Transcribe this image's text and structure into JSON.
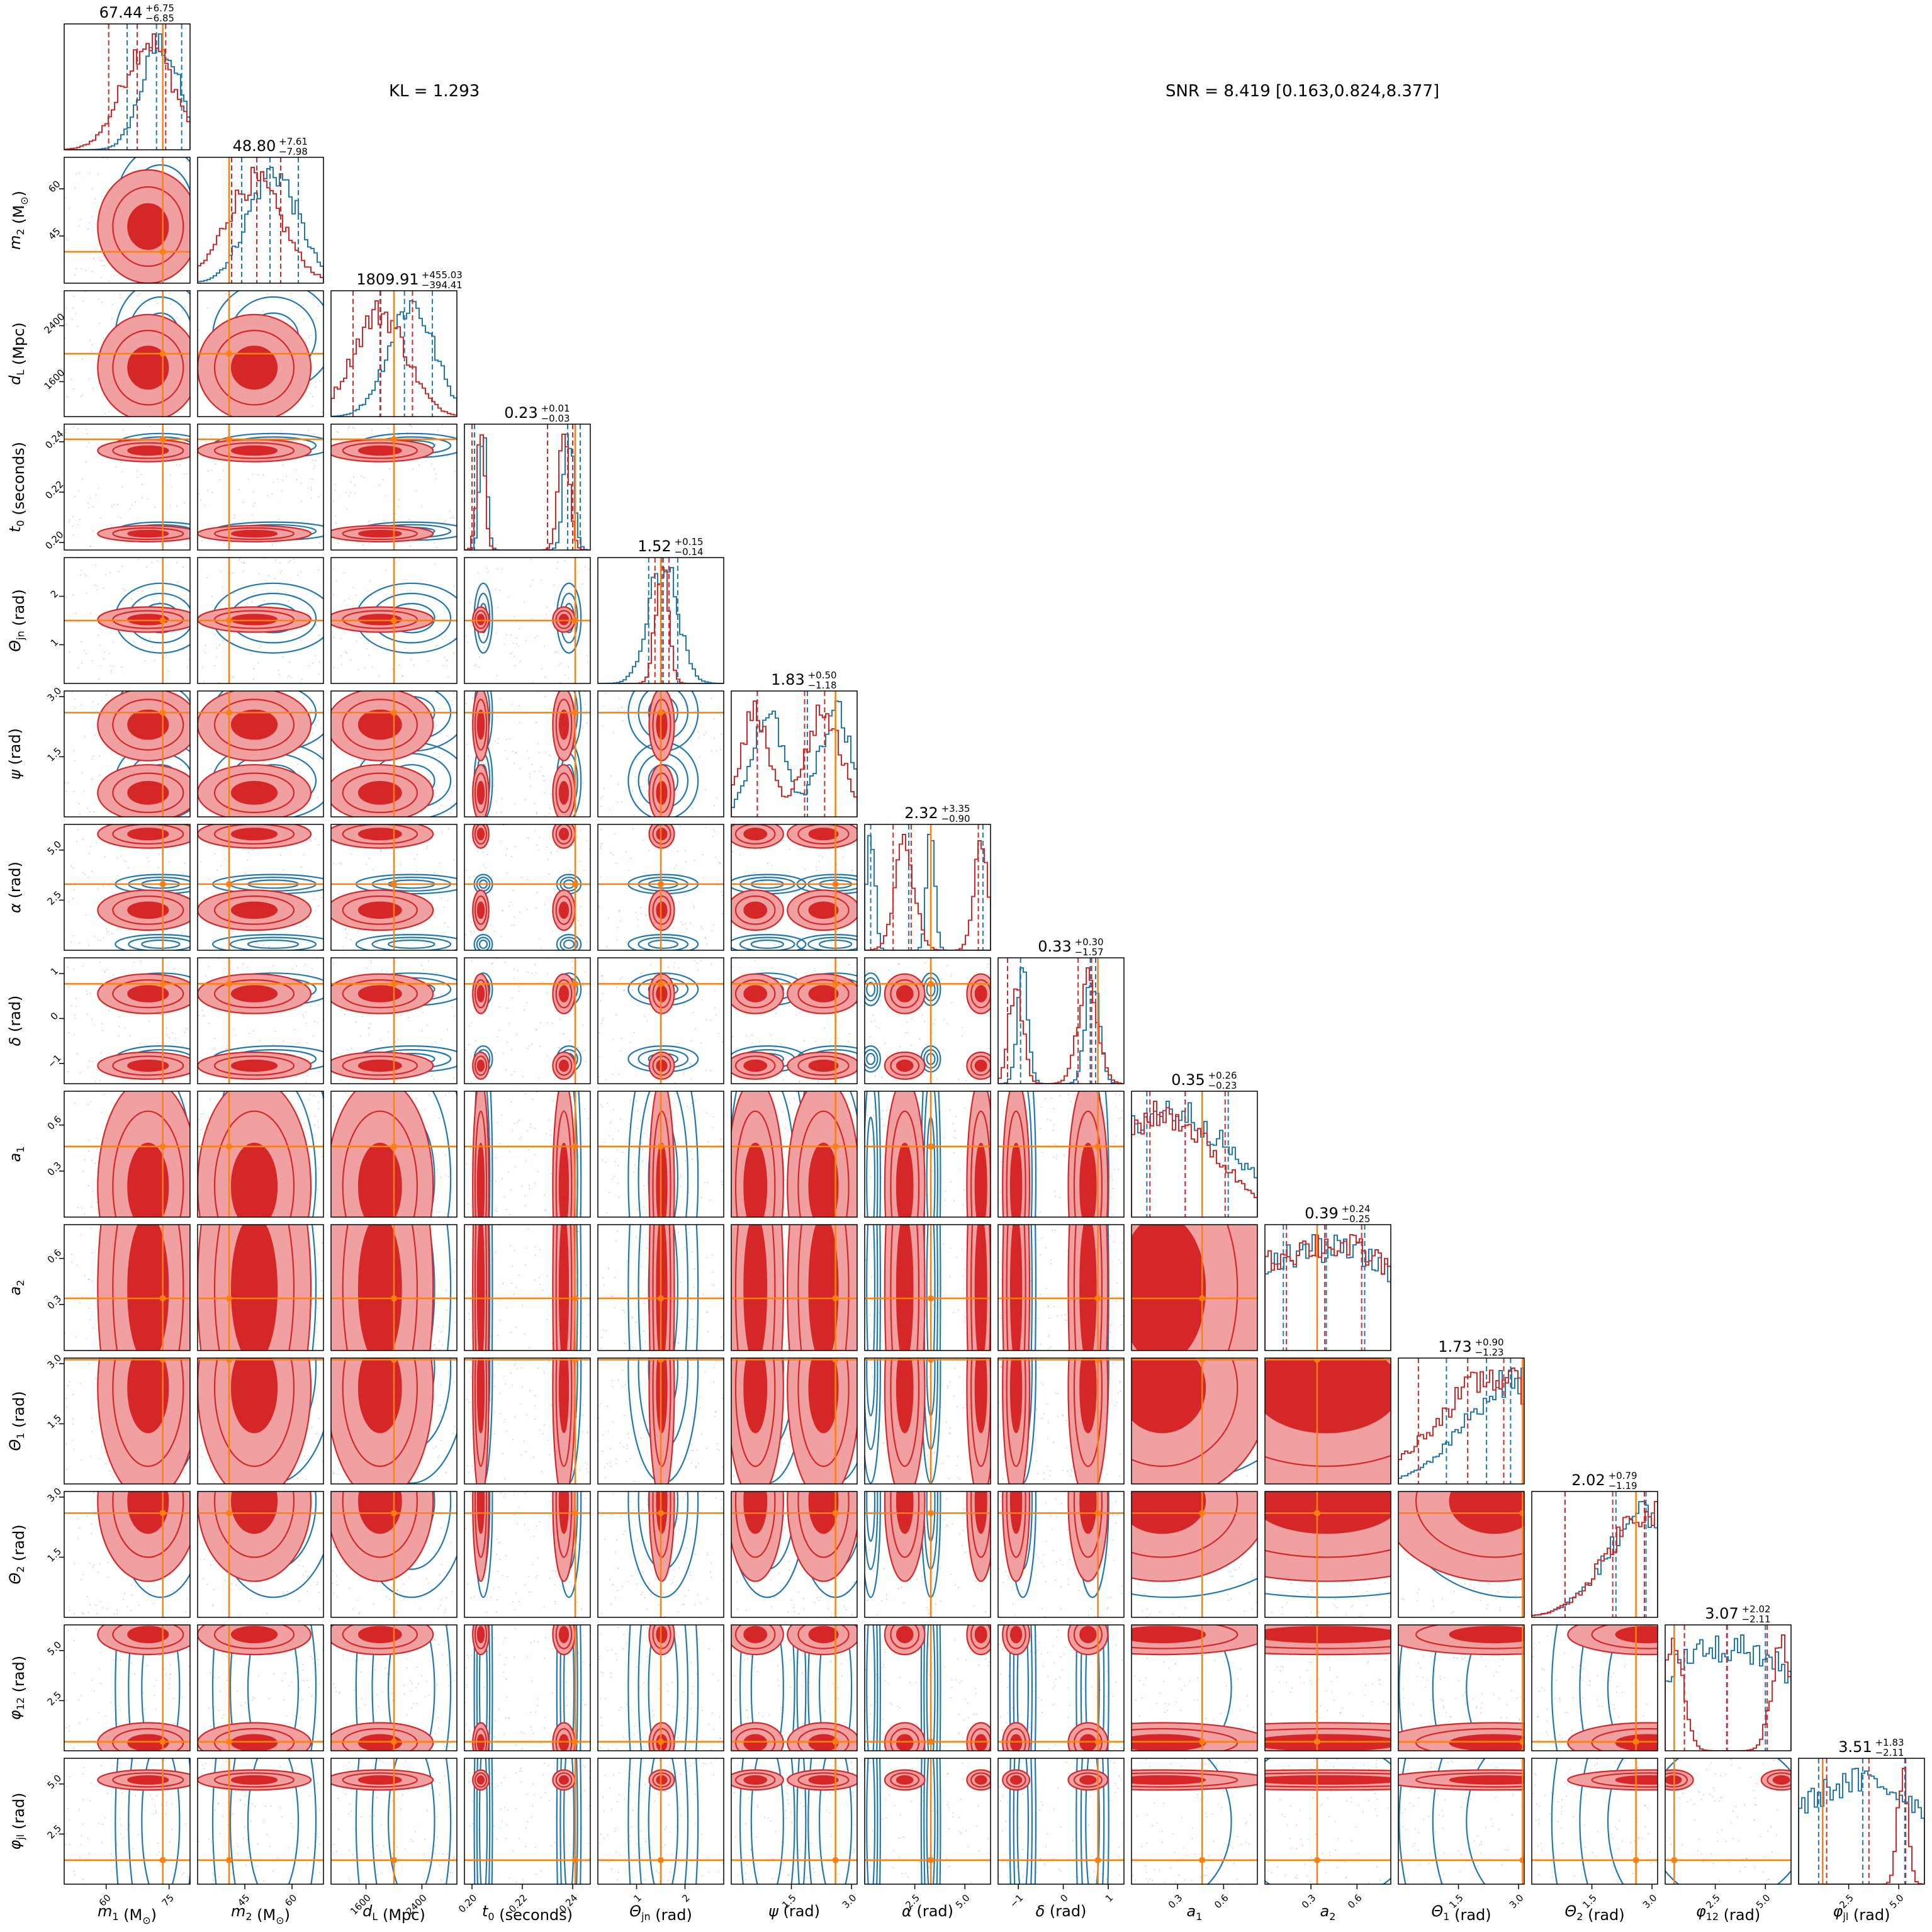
{
  "header": {
    "kl": "KL = 1.293",
    "snr": "SNR = 8.419 [0.163,0.824,8.377]"
  },
  "colors": {
    "posterior_a": "#d62728",
    "posterior_a_fill_light": "#f0a0a0",
    "posterior_b": "#1f77b4",
    "truth": "#ff7f0e"
  },
  "chart_data": {
    "type": "corner",
    "title": "",
    "series": [
      {
        "name": "",
        "color": "#d62728",
        "style": "filled-contours"
      },
      {
        "name": "",
        "color": "#1f77b4",
        "style": "line-contours"
      }
    ],
    "parameters": [
      {
        "key": "m1",
        "label_main": "m",
        "label_sub": "1",
        "label_unit": " (M",
        "label_unit_sub": "⊙",
        "label_unit_end": ")",
        "range": [
          50,
          80
        ],
        "ticks": [
          60,
          75
        ],
        "tick_labels": [
          "60",
          "75"
        ],
        "median": "67.44",
        "plus": "+6.75",
        "minus": "−6.85",
        "truth": 73.5,
        "red": {
          "peaks": [
            [
              70,
              6
            ]
          ],
          "q": [
            60.6,
            67.4,
            74.2
          ]
        },
        "blue": {
          "peaks": [
            [
              73,
              4.5
            ]
          ],
          "q": [
            65.0,
            72.0,
            78.0
          ]
        }
      },
      {
        "key": "m2",
        "label_main": "m",
        "label_sub": "2",
        "label_unit": " (M",
        "label_unit_sub": "⊙",
        "label_unit_end": ")",
        "range": [
          30,
          70
        ],
        "ticks": [
          45,
          60
        ],
        "tick_labels": [
          "45",
          "60"
        ],
        "median": "48.80",
        "plus": "+7.61",
        "minus": "−7.98",
        "truth": 40.0,
        "red": {
          "peaks": [
            [
              48,
              9
            ]
          ],
          "q": [
            40.8,
            48.8,
            56.4
          ]
        },
        "blue": {
          "peaks": [
            [
              54,
              8
            ]
          ],
          "q": [
            44.0,
            53.0,
            62.0
          ]
        }
      },
      {
        "key": "dL",
        "label_main": "d",
        "label_sub": "L",
        "label_unit": " (Mpc)",
        "range": [
          1100,
          2900
        ],
        "ticks": [
          1600,
          2400
        ],
        "tick_labels": [
          "1600",
          "2400"
        ],
        "median": "1809.91",
        "plus": "+455.03",
        "minus": "−394.41",
        "truth": 2000,
        "red": {
          "peaks": [
            [
              1800,
              380
            ]
          ],
          "q": [
            1415,
            1810,
            2265
          ]
        },
        "blue": {
          "peaks": [
            [
              2250,
              330
            ]
          ],
          "q": [
            1800,
            2150,
            2550
          ]
        }
      },
      {
        "key": "t0",
        "label_main": "t",
        "label_sub": "0",
        "label_unit": " (seconds)",
        "range": [
          0.197,
          0.247
        ],
        "ticks": [
          0.2,
          0.22,
          0.24
        ],
        "tick_labels": [
          "0.20",
          "0.22",
          "0.24"
        ],
        "median": "0.23",
        "plus": "+0.01",
        "minus": "−0.03",
        "truth": 0.241,
        "red": {
          "peaks": [
            [
              0.2035,
              0.0016
            ],
            [
              0.2365,
              0.0022
            ]
          ],
          "q": [
            0.2,
            0.23,
            0.24
          ]
        },
        "blue": {
          "peaks": [
            [
              0.2045,
              0.0015
            ],
            [
              0.2385,
              0.002
            ]
          ],
          "q": [
            0.201,
            0.238,
            0.243
          ]
        }
      },
      {
        "key": "thetajn",
        "label_main": "Θ",
        "label_sub": "jn",
        "label_unit": " (rad)",
        "range": [
          0.2,
          2.8
        ],
        "ticks": [
          1,
          2
        ],
        "tick_labels": [
          "1",
          "2"
        ],
        "median": "1.52",
        "plus": "+0.15",
        "minus": "−0.14",
        "truth": 1.5,
        "red": {
          "peaks": [
            [
              1.52,
              0.13
            ]
          ],
          "q": [
            1.38,
            1.52,
            1.67
          ]
        },
        "blue": {
          "peaks": [
            [
              1.55,
              0.3
            ]
          ],
          "q": [
            1.25,
            1.55,
            1.85
          ]
        }
      },
      {
        "key": "psi",
        "label_main": "ψ",
        "label_sub": "",
        "label_unit": " (rad)",
        "range": [
          0,
          3.14
        ],
        "ticks": [
          1.5,
          3.0
        ],
        "tick_labels": [
          "1.5",
          "3.0"
        ],
        "median": "1.83",
        "plus": "+0.50",
        "minus": "−1.18",
        "truth": 2.6,
        "red": {
          "peaks": [
            [
              0.6,
              0.35
            ],
            [
              2.3,
              0.45
            ]
          ],
          "q": [
            0.65,
            1.83,
            2.33
          ]
        },
        "blue": {
          "peaks": [
            [
              0.9,
              0.4
            ],
            [
              2.6,
              0.4
            ]
          ],
          "q": [
            0.65,
            1.9,
            2.6
          ]
        }
      },
      {
        "key": "alpha",
        "label_main": "α",
        "label_sub": "",
        "label_unit": " (rad)",
        "range": [
          0,
          6.28
        ],
        "ticks": [
          2.5,
          5.0
        ],
        "tick_labels": [
          "2.5",
          "5.0"
        ],
        "median": "2.32",
        "plus": "+3.35",
        "minus": "−0.90",
        "truth": 3.3,
        "red": {
          "peaks": [
            [
              2.0,
              0.5
            ],
            [
              5.8,
              0.35
            ]
          ],
          "q": [
            1.42,
            2.32,
            5.67
          ]
        },
        "blue": {
          "peaks": [
            [
              0.3,
              0.2
            ],
            [
              3.3,
              0.2
            ]
          ],
          "q": [
            0.3,
            2.2,
            5.9
          ]
        }
      },
      {
        "key": "delta",
        "label_main": "δ",
        "label_sub": "",
        "label_unit": " (rad)",
        "range": [
          -1.45,
          1.35
        ],
        "ticks": [
          -1,
          0,
          1
        ],
        "tick_labels": [
          "−1",
          "0",
          "1"
        ],
        "median": "0.33",
        "plus": "+0.30",
        "minus": "−1.57",
        "truth": 0.77,
        "red": {
          "peaks": [
            [
              -1.05,
              0.15
            ],
            [
              0.55,
              0.22
            ]
          ],
          "q": [
            -1.24,
            0.33,
            0.63
          ]
        },
        "blue": {
          "peaks": [
            [
              -0.9,
              0.12
            ],
            [
              0.65,
              0.15
            ]
          ],
          "q": [
            -0.95,
            0.6,
            0.72
          ]
        }
      },
      {
        "key": "a1",
        "label_main": "a",
        "label_sub": "1",
        "label_unit": "",
        "range": [
          0,
          0.82
        ],
        "ticks": [
          0.3,
          0.6
        ],
        "tick_labels": [
          "0.3",
          "0.6"
        ],
        "median": "0.35",
        "plus": "+0.26",
        "minus": "−0.23",
        "truth": 0.46,
        "red": {
          "peaks": [
            [
              0.2,
              0.35
            ]
          ],
          "q": [
            0.12,
            0.35,
            0.61
          ]
        },
        "blue": {
          "peaks": [
            [
              0.25,
              0.4
            ]
          ],
          "q": [
            0.1,
            0.35,
            0.63
          ]
        }
      },
      {
        "key": "a2",
        "label_main": "a",
        "label_sub": "2",
        "label_unit": "",
        "range": [
          0,
          0.82
        ],
        "ticks": [
          0.3,
          0.6
        ],
        "tick_labels": [
          "0.3",
          "0.6"
        ],
        "median": "0.39",
        "plus": "+0.24",
        "minus": "−0.25",
        "truth": 0.34,
        "red": {
          "peaks": [
            [
              0.4,
              0.6
            ]
          ],
          "q": [
            0.14,
            0.39,
            0.63
          ]
        },
        "blue": {
          "peaks": [
            [
              0.4,
              0.6
            ]
          ],
          "q": [
            0.12,
            0.4,
            0.65
          ]
        }
      },
      {
        "key": "theta1",
        "label_main": "Θ",
        "label_sub": "1",
        "label_unit": " (rad)",
        "range": [
          0,
          3.14
        ],
        "ticks": [
          1.5,
          3.0
        ],
        "tick_labels": [
          "1.5",
          "3.0"
        ],
        "median": "1.73",
        "plus": "+0.90",
        "minus": "−1.23",
        "truth": 3.1,
        "red": {
          "peaks": [
            [
              2.4,
              1.4
            ]
          ],
          "q": [
            0.5,
            1.73,
            2.63
          ]
        },
        "blue": {
          "peaks": [
            [
              2.9,
              1.2
            ]
          ],
          "q": [
            1.2,
            2.2,
            2.8
          ]
        }
      },
      {
        "key": "theta2",
        "label_main": "Θ",
        "label_sub": "2",
        "label_unit": " (rad)",
        "range": [
          0,
          3.14
        ],
        "ticks": [
          1.5,
          3.0
        ],
        "tick_labels": [
          "1.5",
          "3.0"
        ],
        "median": "2.02",
        "plus": "+0.79",
        "minus": "−1.19",
        "truth": 2.6,
        "red": {
          "peaks": [
            [
              2.9,
              1.0
            ]
          ],
          "q": [
            0.83,
            2.02,
            2.81
          ]
        },
        "blue": {
          "peaks": [
            [
              2.9,
              1.0
            ]
          ],
          "q": [
            0.83,
            2.1,
            2.85
          ]
        }
      },
      {
        "key": "phi12",
        "label_main": "φ",
        "label_sub": "12",
        "label_unit": " (rad)",
        "range": [
          0,
          6.28
        ],
        "ticks": [
          2.5,
          5.0
        ],
        "tick_labels": [
          "2.5",
          "5.0"
        ],
        "median": "3.07",
        "plus": "+2.02",
        "minus": "−2.11",
        "truth": 0.45,
        "red": {
          "peaks": [
            [
              0.4,
              0.5
            ],
            [
              5.8,
              0.5
            ]
          ],
          "q": [
            0.96,
            3.07,
            5.09
          ]
        },
        "blue": {
          "peaks": [
            [
              3.14,
              4
            ]
          ],
          "q": [
            0.96,
            3.1,
            5.0
          ]
        }
      },
      {
        "key": "phijl",
        "label_main": "φ",
        "label_sub": "jl",
        "label_unit": " (rad)",
        "range": [
          0,
          6.28
        ],
        "ticks": [
          2.5,
          5.0
        ],
        "tick_labels": [
          "2.5",
          "5.0"
        ],
        "median": "3.51",
        "plus": "+1.83",
        "minus": "−2.11",
        "truth": 1.2,
        "red": {
          "peaks": [
            [
              5.2,
              0.25
            ]
          ],
          "q": [
            1.4,
            3.51,
            5.34
          ]
        },
        "blue": {
          "peaks": [
            [
              3.14,
              4
            ]
          ],
          "q": [
            1.0,
            3.2,
            5.3
          ]
        }
      }
    ]
  }
}
